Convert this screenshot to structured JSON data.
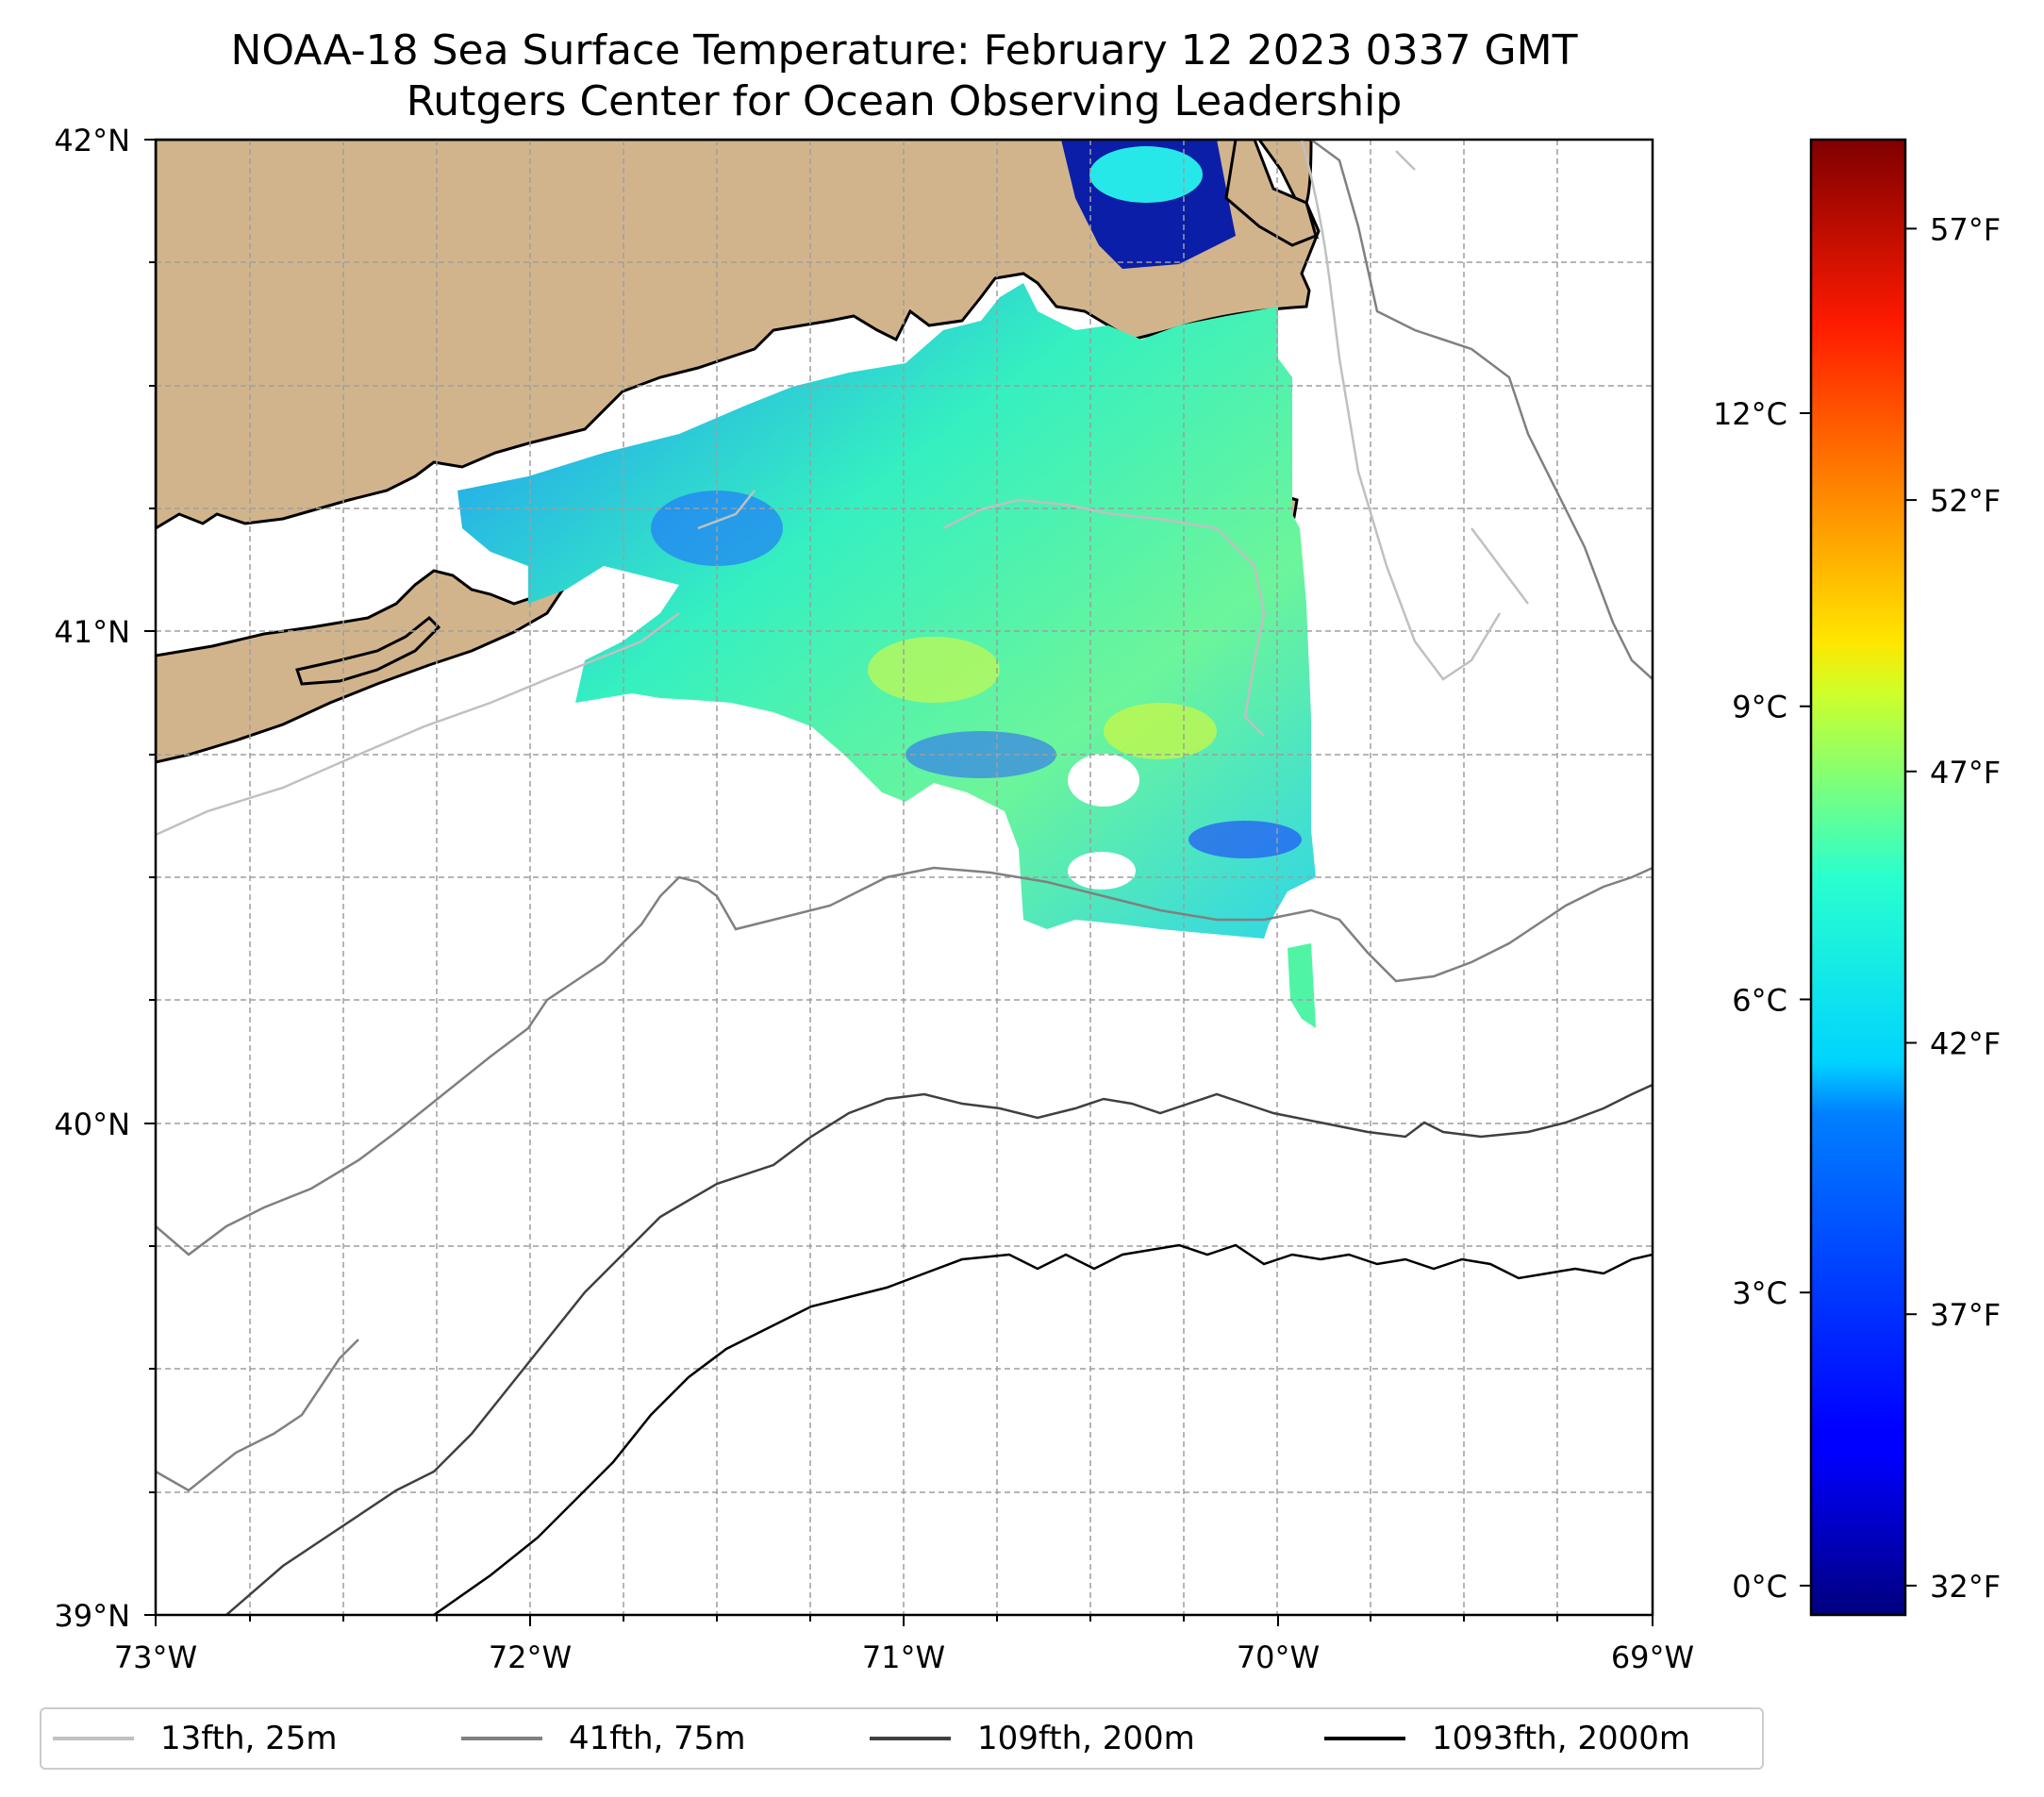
{
  "title": {
    "line1": "NOAA-18 Sea Surface Temperature: February 12 2023 0337 GMT",
    "line2": "Rutgers Center for Ocean Observing Leadership"
  },
  "map": {
    "lon_range": [
      -73,
      -69
    ],
    "lat_range": [
      39,
      42
    ],
    "x_ticks": [
      "73°W",
      "72°W",
      "71°W",
      "70°W",
      "69°W"
    ],
    "y_ticks": [
      "39°N",
      "40°N",
      "41°N",
      "42°N"
    ],
    "land_color": "#d2b48c",
    "grid": true
  },
  "colorbar": {
    "colormap": "jet",
    "celsius_ticks": [
      "0°C",
      "3°C",
      "6°C",
      "9°C",
      "12°C"
    ],
    "celsius_values": [
      0,
      3,
      6,
      9,
      12
    ],
    "fahrenheit_ticks": [
      "32°F",
      "37°F",
      "42°F",
      "47°F",
      "52°F",
      "57°F"
    ],
    "fahrenheit_values": [
      32,
      37,
      42,
      47,
      52,
      57
    ],
    "range_c": [
      -0.3,
      14.8
    ]
  },
  "legend": {
    "items": [
      {
        "label": "13fth, 25m",
        "color": "#c0c0c0"
      },
      {
        "label": "41fth, 75m",
        "color": "#808080"
      },
      {
        "label": "109fth, 200m",
        "color": "#404040"
      },
      {
        "label": "1093fth, 2000m",
        "color": "#000000"
      }
    ]
  }
}
